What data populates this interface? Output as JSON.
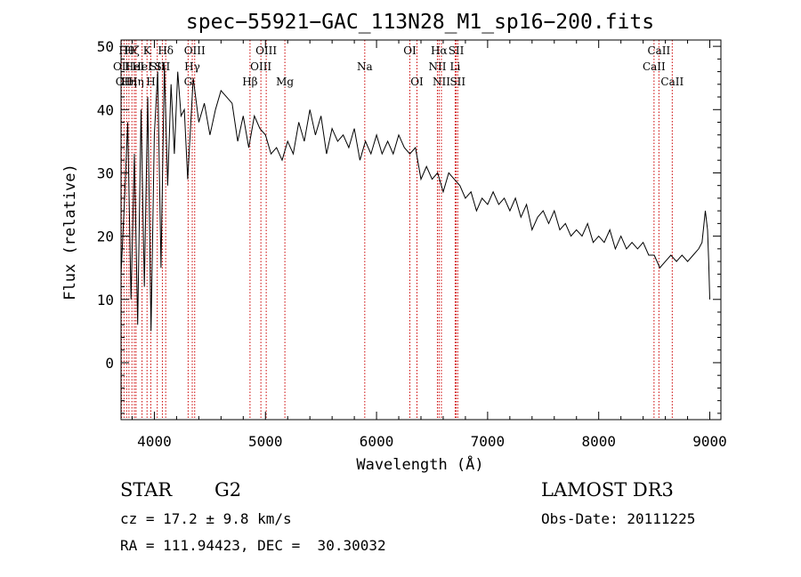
{
  "chart_data": {
    "type": "line",
    "title": "spec−55921−GAC_113N28_M1_sp16−200.fits",
    "xlabel": "Wavelength (Å)",
    "ylabel": "Flux (relative)",
    "xlim": [
      3700,
      9100
    ],
    "ylim": [
      -9,
      51
    ],
    "xticks": [
      4000,
      5000,
      6000,
      7000,
      8000,
      9000
    ],
    "yticks": [
      0,
      10,
      20,
      30,
      40,
      50
    ],
    "grid": false,
    "line_color": "#000000",
    "marker_color": "#cc0000",
    "series": [
      {
        "name": "flux",
        "x": [
          3700,
          3730,
          3760,
          3790,
          3820,
          3850,
          3880,
          3910,
          3940,
          3970,
          4000,
          4030,
          4060,
          4090,
          4120,
          4150,
          4180,
          4210,
          4240,
          4270,
          4300,
          4350,
          4400,
          4450,
          4500,
          4550,
          4600,
          4650,
          4700,
          4750,
          4800,
          4850,
          4900,
          4950,
          5000,
          5050,
          5100,
          5150,
          5200,
          5250,
          5300,
          5350,
          5400,
          5450,
          5500,
          5550,
          5600,
          5650,
          5700,
          5750,
          5800,
          5850,
          5900,
          5950,
          6000,
          6050,
          6100,
          6150,
          6200,
          6250,
          6300,
          6350,
          6400,
          6450,
          6500,
          6550,
          6600,
          6650,
          6700,
          6750,
          6800,
          6850,
          6900,
          6950,
          7000,
          7050,
          7100,
          7150,
          7200,
          7250,
          7300,
          7350,
          7400,
          7450,
          7500,
          7550,
          7600,
          7650,
          7700,
          7750,
          7800,
          7850,
          7900,
          7950,
          8000,
          8050,
          8100,
          8150,
          8200,
          8250,
          8300,
          8350,
          8400,
          8450,
          8500,
          8550,
          8600,
          8650,
          8700,
          8750,
          8800,
          8850,
          8900,
          8930,
          8960,
          8980,
          8990,
          9000
        ],
        "values": [
          14,
          25,
          38,
          10,
          33,
          6,
          40,
          12,
          42,
          5,
          36,
          46,
          15,
          47,
          28,
          44,
          33,
          46,
          39,
          40,
          29,
          45,
          38,
          41,
          36,
          40,
          43,
          42,
          41,
          35,
          39,
          34,
          39,
          37,
          36,
          33,
          34,
          32,
          35,
          33,
          38,
          35,
          40,
          36,
          39,
          33,
          37,
          35,
          36,
          34,
          37,
          32,
          35,
          33,
          36,
          33,
          35,
          33,
          36,
          34,
          33,
          34,
          29,
          31,
          29,
          30,
          27,
          30,
          29,
          28,
          26,
          27,
          24,
          26,
          25,
          27,
          25,
          26,
          24,
          26,
          23,
          25,
          21,
          23,
          24,
          22,
          24,
          21,
          22,
          20,
          21,
          20,
          22,
          19,
          20,
          19,
          21,
          18,
          20,
          18,
          19,
          18,
          19,
          17,
          17,
          15,
          16,
          17,
          16,
          17,
          16,
          17,
          18,
          19,
          24,
          21,
          16,
          10
        ]
      }
    ],
    "line_markers": [
      {
        "x": 3705,
        "label": "OII",
        "row": 2
      },
      {
        "x": 3727,
        "label": "OII",
        "row": 3
      },
      {
        "x": 3750,
        "label": "Hθ",
        "row": 1
      },
      {
        "x": 3771,
        "label": "Hη",
        "row": 3
      },
      {
        "x": 3798,
        "label": "Hζ",
        "row": 1
      },
      {
        "x": 3820,
        "label": "HeI",
        "row": 2
      },
      {
        "x": 3835,
        "label": "Hη",
        "row": 3
      },
      {
        "x": 3889,
        "label": "HeI",
        "row": 2
      },
      {
        "x": 3934,
        "label": "K",
        "row": 1
      },
      {
        "x": 3968,
        "label": "H",
        "row": 3
      },
      {
        "x": 4026,
        "label": "SII",
        "row": 2
      },
      {
        "x": 4072,
        "label": "SII",
        "row": 2
      },
      {
        "x": 4102,
        "label": "Hδ",
        "row": 1
      },
      {
        "x": 4304,
        "label": "G",
        "row": 3
      },
      {
        "x": 4341,
        "label": "Hγ",
        "row": 2
      },
      {
        "x": 4363,
        "label": "OIII",
        "row": 1
      },
      {
        "x": 4861,
        "label": "Hβ",
        "row": 3
      },
      {
        "x": 4959,
        "label": "OIII",
        "row": 2
      },
      {
        "x": 5007,
        "label": "OIII",
        "row": 1
      },
      {
        "x": 5175,
        "label": "Mg",
        "row": 3
      },
      {
        "x": 5894,
        "label": "Na",
        "row": 2
      },
      {
        "x": 6300,
        "label": "OI",
        "row": 1
      },
      {
        "x": 6364,
        "label": "OI",
        "row": 3
      },
      {
        "x": 6548,
        "label": "NII",
        "row": 2
      },
      {
        "x": 6563,
        "label": "Hα",
        "row": 1
      },
      {
        "x": 6584,
        "label": "NII",
        "row": 3
      },
      {
        "x": 6708,
        "label": "Li",
        "row": 2
      },
      {
        "x": 6717,
        "label": "SII",
        "row": 1
      },
      {
        "x": 6731,
        "label": "SII",
        "row": 3
      },
      {
        "x": 8498,
        "label": "CaII",
        "row": 2
      },
      {
        "x": 8542,
        "label": "CaII",
        "row": 1
      },
      {
        "x": 8662,
        "label": "CaII",
        "row": 3
      }
    ]
  },
  "info": {
    "object_type": "STAR",
    "subclass": "G2",
    "redshift": "cz = 17.2 ± 9.8 km/s",
    "coords": "RA = 111.94423, DEC =  30.30032",
    "survey": "LAMOST DR3",
    "obs_date": "Obs-Date: 20111225"
  }
}
